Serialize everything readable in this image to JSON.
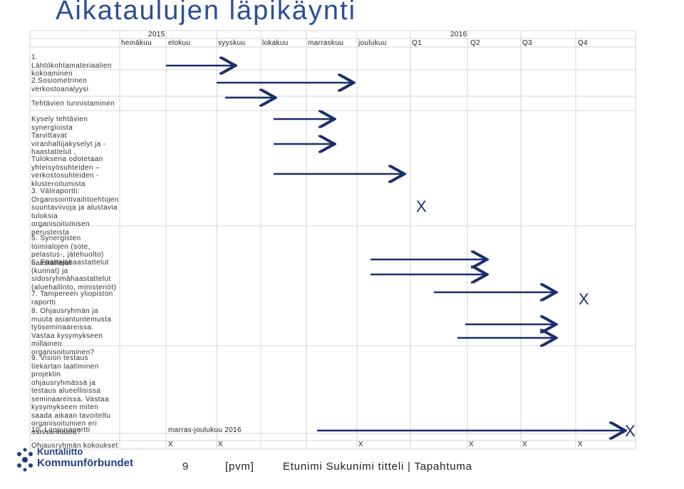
{
  "title": "Aikataulujen läpikäynti",
  "years": {
    "y2015": "2015",
    "y2016": "2016"
  },
  "months": [
    "heinäkuu",
    "elokuu",
    "syyskuu",
    "lokakuu",
    "marraskuu",
    "joulukuu",
    "Q1",
    "Q2",
    "Q3",
    "Q4"
  ],
  "rows": [
    "1. Lähtökohtamateriaalien kokoaminen",
    "2.Sosiometrinen verkostoanalyysi",
    "Tehtävien tunnistaminen",
    "Kysely tehtävien synergioista",
    "Tarvittavat viranhaltijakyselyt ja -haastattelut ,",
    "Tuloksena odotetaan yhteisyösuhteiden – verkostosuhteiden - klusteroitumista",
    "3. Väliraportti: Organisointivaihtoehtojen suuntaviivoja ja alustavia tuloksia organisoitumisen perusteista",
    "5.  Synergisten toimialojen (sote, pelastus-, jätehuolto) haastattelut",
    "6.  Päättäjähaastattelut (kunnat) ja sidosryhmähaastattelut (aluehallinto, ministeriöt)",
    "7.  Tampereen yliopiston raportti",
    "8.  Ohjausryhmän ja muuta asiantuntemusta työseminaareissa. Vastaa kysymykseen millainen organisoituminen?",
    "9.  Vision testaus tiekartan laatiminen projektin ohjausryhmässä ja testaus alueellisissa seminaareissa. Vastaa kysymykseen miten saada aikaan tavoiteltu organisoitumien eri osissa maata?",
    "10.  Loppuraportti",
    "Ohjausryhmän kokoukset"
  ],
  "loppuraportti_note": "marras-joulukuu 2016",
  "milestone_mark": "X",
  "meeting_marks": [
    "X",
    "X",
    "X",
    "X",
    "X",
    "X"
  ],
  "logo": {
    "line1": "Kuntaliitto",
    "line2": "Kommunförbundet"
  },
  "footer": {
    "page": "9",
    "pvm": "[pvm]",
    "author": "Etunimi Sukunimi titteli | Tapahtuma"
  },
  "colors": {
    "title": "#2a4f9a",
    "arrow": "#1a2e6b",
    "grid": "#d0d0d0",
    "logo": "#1e3f86"
  }
}
